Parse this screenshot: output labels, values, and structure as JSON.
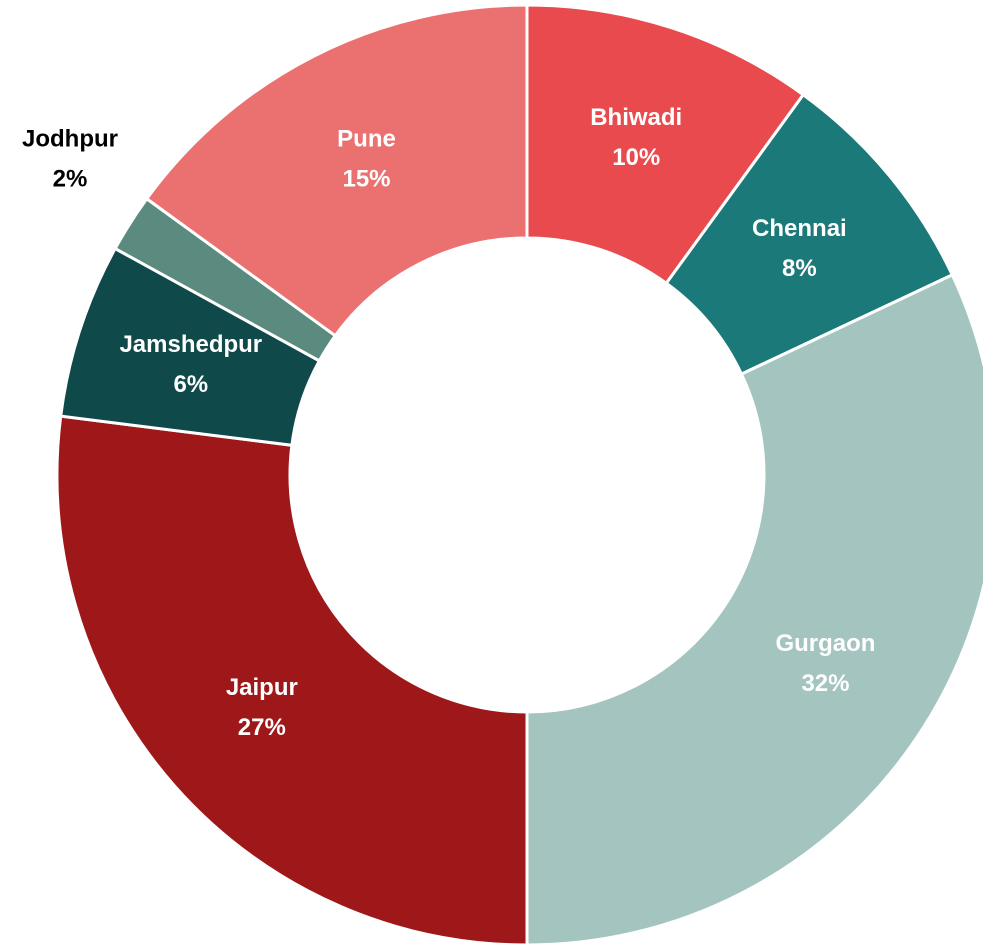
{
  "chart_data": {
    "type": "donut",
    "categories": [
      "Bhiwadi",
      "Chennai",
      "Gurgaon",
      "Jaipur",
      "Jamshedpur",
      "Jodhpur",
      "Pune"
    ],
    "values": [
      10,
      8,
      32,
      27,
      6,
      2,
      15
    ],
    "value_labels": [
      "10%",
      "8%",
      "32%",
      "27%",
      "6%",
      "2%",
      "15%"
    ],
    "colors": [
      "#e84a4e",
      "#1b7979",
      "#a3c4bf",
      "#9e1719",
      "#10494a",
      "#5b8a7e",
      "#eb7171"
    ]
  }
}
